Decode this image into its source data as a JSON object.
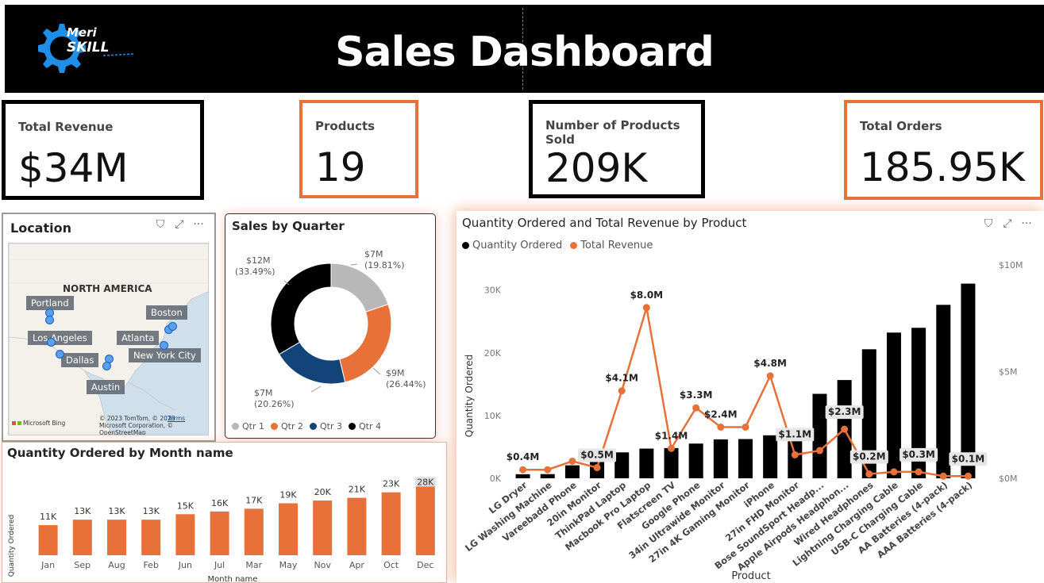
{
  "header": {
    "title": "Sales Dashboard",
    "logo_line1": "Meri",
    "logo_line2": "SKILL"
  },
  "colors": {
    "accent": "#E8713A",
    "black": "#000000",
    "qtr1": "#B8B8B8",
    "qtr2": "#E8713A",
    "qtr3": "#12447A",
    "qtr4": "#000000",
    "map_dot": "#5AA0F0"
  },
  "kpis": [
    {
      "label": "Total Revenue",
      "value": "$34M"
    },
    {
      "label": "Products",
      "value": "19"
    },
    {
      "label": "Number of Products Sold",
      "value": "209K"
    },
    {
      "label": "Total Orders",
      "value": "185.95K"
    }
  ],
  "location": {
    "title": "Location",
    "region_label": "NORTH AMERICA",
    "cities": [
      "Portland",
      "Boston",
      "Los Angeles",
      "Atlanta",
      "New York City",
      "Dallas",
      "Austin"
    ],
    "attribution": "© 2023 TomTom, © 2023 Microsoft Corporation, © OpenStreetMap",
    "terms": "Terms",
    "ms_label": "Microsoft Bing"
  },
  "chart_data": [
    {
      "id": "sales_by_quarter",
      "type": "pie",
      "title": "Sales by Quarter",
      "categories": [
        "Qtr 1",
        "Qtr 2",
        "Qtr 3",
        "Qtr 4"
      ],
      "values": [
        19.81,
        26.44,
        20.26,
        33.49
      ],
      "data_labels": [
        "$7M (19.81%)",
        "$9M (26.44%)",
        "$7M (20.26%)",
        "$12M (33.49%)"
      ],
      "legend": "bottom"
    },
    {
      "id": "qty_by_month",
      "type": "bar",
      "title": "Quantity Ordered by Month name",
      "xlabel": "Month name",
      "ylabel": "Quantity Ordered",
      "categories": [
        "Jan",
        "Sep",
        "Aug",
        "Feb",
        "Jun",
        "Jul",
        "Mar",
        "May",
        "Nov",
        "Apr",
        "Oct",
        "Dec"
      ],
      "values": [
        11,
        13,
        13,
        13,
        15,
        16,
        17,
        19,
        20,
        21,
        23,
        28
      ],
      "data_labels": [
        "11K",
        "13K",
        "13K",
        "13K",
        "15K",
        "16K",
        "17K",
        "19K",
        "20K",
        "21K",
        "23K",
        "28K"
      ],
      "ylim": [
        0,
        29
      ]
    },
    {
      "id": "qty_revenue_by_product",
      "type": "bar",
      "title": "Quantity Ordered and Total Revenue by Product",
      "xlabel": "Product",
      "ylabel": "Quantity Ordered",
      "y2label": "Total Revenue",
      "legend": "top-left",
      "categories": [
        "LG Dryer",
        "LG Washing Machine",
        "Vareebadd Phone",
        "20in Monitor",
        "ThinkPad Laptop",
        "Macbook Pro Laptop",
        "Flatscreen TV",
        "Google Phone",
        "34in Ultrawide Monitor",
        "27in 4K Gaming Monitor",
        "iPhone",
        "27in FHD Monitor",
        "Bose SoundSport Headp...",
        "Apple Airpods Headphon...",
        "Wired Headphones",
        "Lightning Charging Cable",
        "USB-C Charging Cable",
        "AA Batteries (4-pack)",
        "AAA Batteries (4-pack)"
      ],
      "series": [
        {
          "name": "Quantity Ordered",
          "type": "bar",
          "values": [
            650,
            670,
            2070,
            4130,
            4130,
            4730,
            4820,
            5530,
            6200,
            6250,
            6850,
            7550,
            13460,
            15660,
            20560,
            23220,
            23980,
            27640,
            31020
          ]
        },
        {
          "name": "Total Revenue",
          "type": "line",
          "values": [
            0.4,
            0.4,
            0.8,
            0.5,
            4.1,
            8.0,
            1.4,
            3.3,
            2.4,
            2.4,
            4.8,
            1.1,
            1.3,
            2.3,
            0.2,
            0.3,
            0.3,
            0.1,
            0.1
          ]
        }
      ],
      "revenue_labels": [
        "$0.4M",
        "",
        "",
        "$0.5M",
        "$4.1M",
        "$8.0M",
        "$1.4M",
        "$3.3M",
        "$2.4M",
        "",
        "$4.8M",
        "$1.1M",
        "",
        "$2.3M",
        "$0.2M",
        "",
        "$0.3M",
        "",
        "$0.1M"
      ],
      "y_ticks": [
        "0K",
        "10K",
        "20K",
        "30K"
      ],
      "y2_ticks": [
        "$0M",
        "$5M",
        "$10M"
      ],
      "ylim": [
        0,
        34000
      ],
      "y2lim": [
        0,
        10
      ]
    }
  ]
}
